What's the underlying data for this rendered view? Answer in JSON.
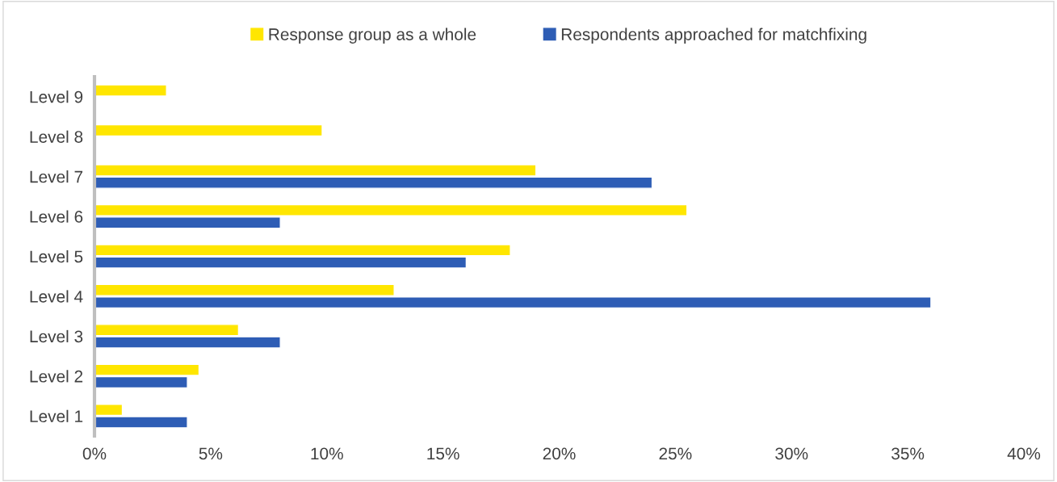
{
  "chart_data": {
    "type": "bar",
    "orientation": "horizontal",
    "categories": [
      "Level 9",
      "Level 8",
      "Level 7",
      "Level 6",
      "Level 5",
      "Level 4",
      "Level 3",
      "Level 2",
      "Level 1"
    ],
    "series": [
      {
        "name": "Response group as a whole",
        "color": "#ffe600",
        "values": [
          3.1,
          9.8,
          19,
          25.5,
          17.9,
          12.9,
          6.2,
          4.5,
          1.2
        ]
      },
      {
        "name": "Respondents approached for matchfixing",
        "color": "#2e5db5",
        "values": [
          null,
          null,
          24,
          8,
          16,
          36,
          8,
          4,
          4
        ]
      }
    ],
    "xlim": [
      0,
      40
    ],
    "xticks": [
      {
        "value": 0,
        "label": "0%"
      },
      {
        "value": 5,
        "label": "5%"
      },
      {
        "value": 10,
        "label": "10%"
      },
      {
        "value": 15,
        "label": "15%"
      },
      {
        "value": 20,
        "label": "20%"
      },
      {
        "value": 25,
        "label": "25%"
      },
      {
        "value": 30,
        "label": "30%"
      },
      {
        "value": 35,
        "label": "35%"
      },
      {
        "value": 40,
        "label": "40%"
      }
    ],
    "grid": false,
    "legend": "top"
  }
}
